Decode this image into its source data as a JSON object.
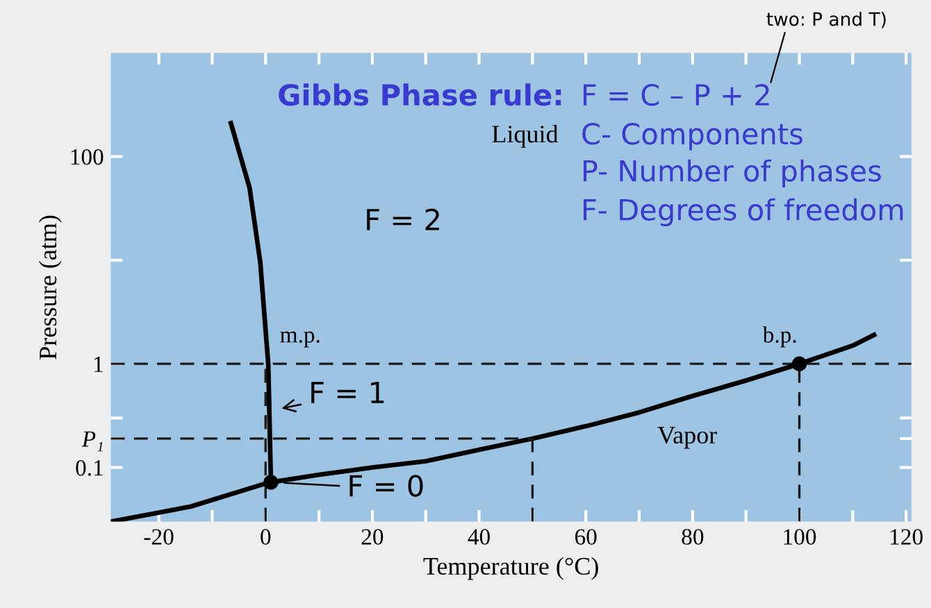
{
  "chart_data": {
    "type": "line",
    "xlabel": "Temperature (°C)",
    "ylabel": "Pressure (atm)",
    "log": "y",
    "xlim": [
      -29,
      121
    ],
    "xticks": [
      -20,
      {
        "value": -10,
        "label": null
      },
      0,
      {
        "value": 10,
        "label": null
      },
      20,
      {
        "value": 30,
        "label": null
      },
      40,
      {
        "value": 50,
        "label": null
      },
      60,
      {
        "value": 70,
        "label": null
      },
      80,
      {
        "value": 90,
        "label": null
      },
      100,
      {
        "value": 110,
        "label": null
      },
      120
    ],
    "ylim": [
      0.03,
      1000
    ],
    "yticks": [
      100,
      {
        "value": 10,
        "label": null
      },
      1,
      {
        "value": 0.3,
        "label": null
      },
      {
        "value": 0.19,
        "label": "P₁"
      },
      0.1
    ],
    "grid": false,
    "legend": false,
    "series": [
      {
        "color": "#000000",
        "line_style": "solid",
        "x": [
          1,
          0.5,
          -1,
          -3,
          -6.5
        ],
        "values": [
          0.072,
          1,
          9.6,
          50,
          210
        ]
      },
      {
        "color": "#000000",
        "line_style": "solid",
        "x": [
          -29,
          -14,
          0,
          1,
          10,
          20,
          30,
          40,
          50,
          60,
          70,
          80,
          90,
          100,
          110,
          114
        ],
        "values": [
          0.03,
          0.042,
          0.07,
          0.072,
          0.085,
          0.1,
          0.115,
          0.148,
          0.19,
          0.25,
          0.34,
          0.49,
          0.69,
          1,
          1.5,
          1.9
        ]
      },
      {
        "type": "line",
        "color": "#1a1a1a",
        "line_style": "dashed",
        "x": [
          0,
          0
        ],
        "values": [
          0.03,
          1
        ]
      },
      {
        "type": "line",
        "color": "#1a1a1a",
        "line_style": "dashed",
        "x": [
          -29,
          50
        ],
        "values": [
          0.19,
          0.19
        ]
      },
      {
        "type": "line",
        "color": "#1a1a1a",
        "line_style": "dashed",
        "x": [
          50,
          50
        ],
        "values": [
          0.03,
          0.19
        ]
      },
      {
        "type": "line",
        "color": "#1a1a1a",
        "line_style": "dashed",
        "x": [
          100,
          100
        ],
        "values": [
          0.03,
          1
        ]
      },
      {
        "type": "scatter",
        "color": "#000000",
        "marker": "circle",
        "x": [
          1,
          100
        ],
        "values": [
          0.072,
          1
        ]
      }
    ],
    "ref_lines": [
      {
        "axis": "y",
        "value": 1,
        "color": "#1a1a1a",
        "line_style": "dashed"
      }
    ],
    "annotations": [
      "Gibbs Phase rule:",
      "F = C – P + 2",
      "C- Components",
      "P- Number of phases",
      "F- Degrees of freedom",
      "two: P and T)",
      "Liquid",
      "Vapor",
      "F = 2",
      {
        "text": "m.p.",
        "x": 0,
        "y": 1
      },
      {
        "text": "b.p.",
        "x": 100,
        "y": 1
      },
      {
        "text": "F = 1",
        "x": 0.5,
        "y": 0.35
      },
      {
        "text": "F = 0",
        "x": 1,
        "y": 0.072
      }
    ]
  }
}
